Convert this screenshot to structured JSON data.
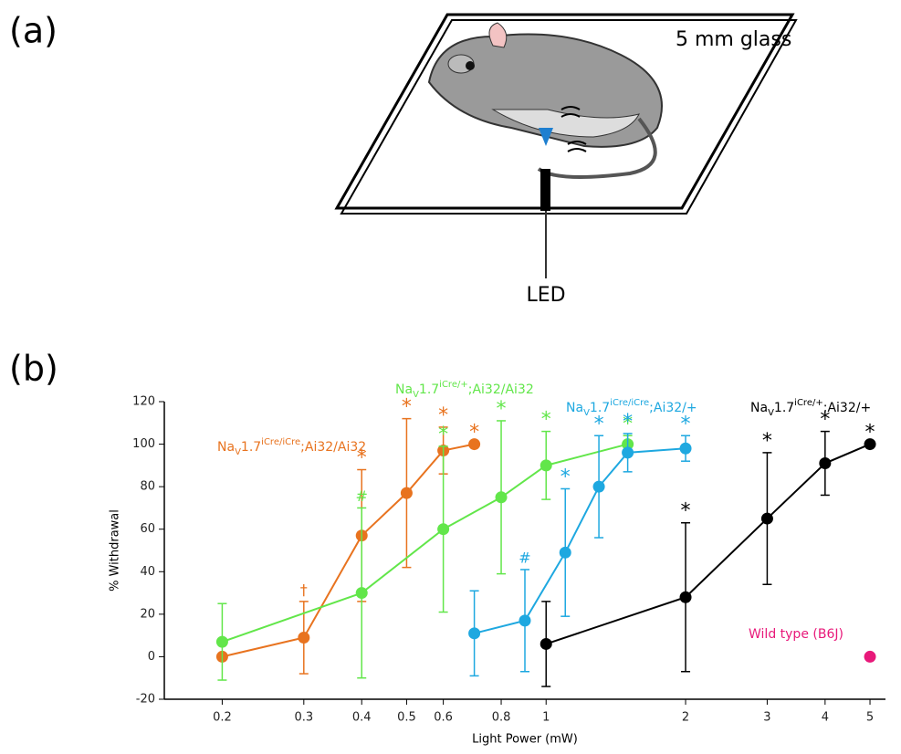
{
  "panel_a": {
    "label": "(a)",
    "glass_label": "5 mm glass",
    "led_label": "LED"
  },
  "panel_b": {
    "label": "(b)"
  },
  "chart_data": {
    "type": "line",
    "x_label": "Light Power (mW)",
    "y_label": "% Withdrawal",
    "xscale": "log",
    "xlim": [
      0.15,
      5.4
    ],
    "ylim": [
      -20,
      120
    ],
    "xticks": [
      0.2,
      0.3,
      0.4,
      0.5,
      0.6,
      0.8,
      1,
      2,
      3,
      4,
      5
    ],
    "yticks": [
      -20,
      0,
      20,
      40,
      60,
      80,
      100,
      120
    ],
    "series": [
      {
        "name_parts": {
          "base": "Na",
          "sub": "V",
          "version": "1.7",
          "sup": "iCre/iCre",
          "rest": ";Ai32/Ai32"
        },
        "color": "#e8731f",
        "x": [
          0.2,
          0.3,
          0.4,
          0.5,
          0.6,
          0.7
        ],
        "values": [
          0,
          9,
          57,
          77,
          97,
          100
        ],
        "errors": [
          null,
          17,
          31,
          35,
          11,
          null
        ],
        "marks": [
          null,
          "†",
          "*",
          "*",
          "*",
          "*"
        ]
      },
      {
        "name_parts": {
          "base": "Na",
          "sub": "V",
          "version": "1.7",
          "sup": "iCre/+",
          "rest": ";Ai32/Ai32"
        },
        "color": "#62e64a",
        "x": [
          0.2,
          0.4,
          0.6,
          0.8,
          1,
          1.5
        ],
        "values": [
          7,
          30,
          60,
          75,
          90,
          100
        ],
        "errors": [
          18,
          40,
          39,
          36,
          16,
          4
        ],
        "marks": [
          null,
          "#",
          "*",
          "*",
          "*",
          "*"
        ]
      },
      {
        "name_parts": {
          "base": "Na",
          "sub": "V",
          "version": "1.7",
          "sup": "iCre/iCre",
          "rest": ";Ai32/+"
        },
        "color": "#1ea8e0",
        "x": [
          0.7,
          0.9,
          1.1,
          1.3,
          1.5,
          2
        ],
        "values": [
          11,
          17,
          49,
          80,
          96,
          98
        ],
        "errors": [
          20,
          24,
          30,
          24,
          9,
          6
        ],
        "marks": [
          null,
          "#",
          "*",
          "*",
          "*",
          "*"
        ]
      },
      {
        "name_parts": {
          "base": "Na",
          "sub": "V",
          "version": "1.7",
          "sup": "iCre/+",
          "rest": ";Ai32/+"
        },
        "color": "#000000",
        "x": [
          1,
          2,
          3,
          4,
          5
        ],
        "values": [
          6,
          28,
          65,
          91,
          100
        ],
        "errors": [
          20,
          35,
          31,
          15,
          null
        ],
        "marks": [
          null,
          "*",
          "*",
          "*",
          "*"
        ]
      },
      {
        "name": "Wild type (B6J)",
        "color": "#e8197a",
        "x": [
          5
        ],
        "values": [
          0
        ]
      }
    ]
  }
}
